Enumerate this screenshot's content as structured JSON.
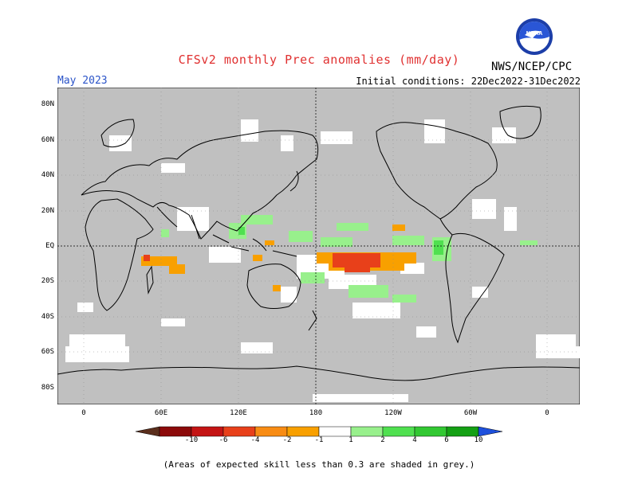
{
  "title": "CFSv2 monthly Prec anomalies (mm/day)",
  "valid_month": "May 2023",
  "initial_conditions": "Initial conditions: 22Dec2022-31Dec2022",
  "agency": "NWS/NCEP/CPC",
  "logo_text": "NOAA",
  "lat_labels": [
    "80N",
    "60N",
    "40N",
    "20N",
    "EQ",
    "20S",
    "40S",
    "60S",
    "80S"
  ],
  "lon_labels": [
    "0",
    "60E",
    "120E",
    "180",
    "120W",
    "60W",
    "0"
  ],
  "colorbar": {
    "labels": [
      "-10",
      "-6",
      "-4",
      "-2",
      "-1",
      "1",
      "2",
      "4",
      "6",
      "10"
    ],
    "colors": [
      "#5a2e1c",
      "#8c0a0a",
      "#c41414",
      "#e8401a",
      "#f88c14",
      "#f8a000",
      "#ffffff",
      "#98f08c",
      "#50e050",
      "#32c832",
      "#14a014",
      "#1e50dc"
    ]
  },
  "footnote": "(Areas of expected skill less than 0.3 are shaded in grey.)",
  "map_colors": {
    "skill_mask": "#c0c0c0",
    "background": "#ffffff",
    "coast": "#000000"
  }
}
